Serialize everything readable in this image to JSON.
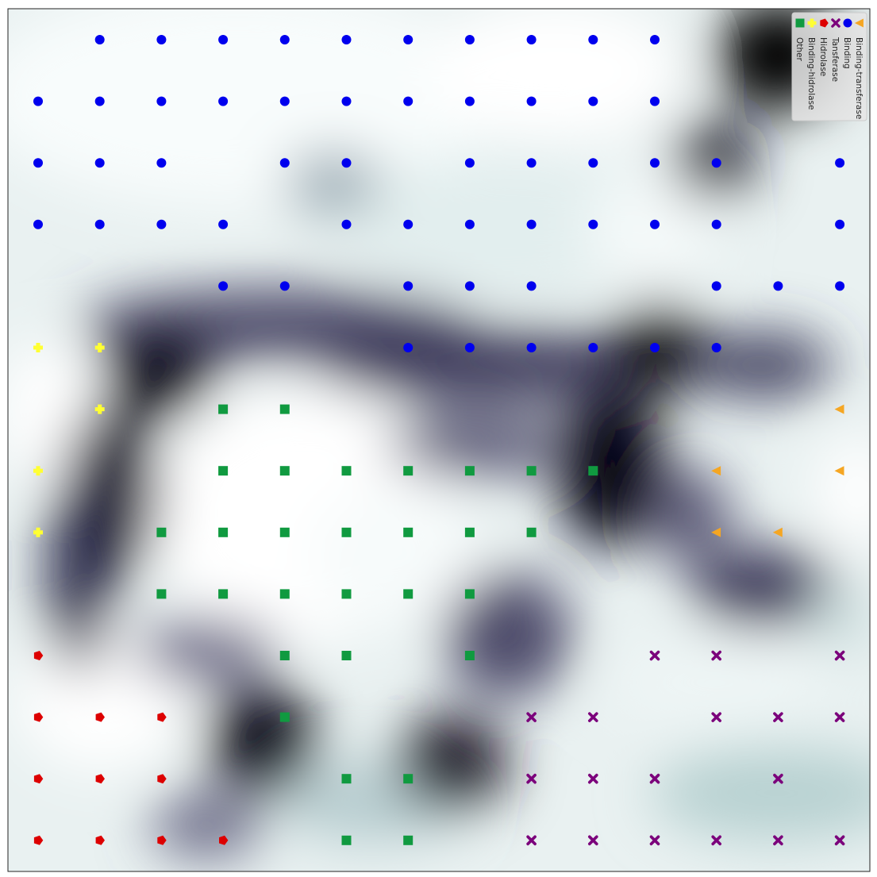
{
  "chart_data": {
    "type": "scatter",
    "title": "",
    "xlabel": "",
    "ylabel": "",
    "grid": false,
    "xlim": [
      0,
      14
    ],
    "ylim": [
      0,
      14
    ],
    "grid_size": [
      14,
      14
    ],
    "background": "heatmap (U-matrix style, dark = high distance, light = low distance)",
    "legend": {
      "placement": "top-right",
      "orientation": "rotated 90 degrees"
    },
    "series": [
      {
        "name": "Binding-transferase",
        "color": "#f5a623",
        "marker": "triangle-left",
        "points": [
          [
            13,
            6
          ],
          [
            11,
            7
          ],
          [
            13,
            7
          ],
          [
            11,
            8
          ],
          [
            12,
            8
          ]
        ]
      },
      {
        "name": "Binding",
        "color": "#0000ee",
        "marker": "circle",
        "points": [
          [
            1,
            0
          ],
          [
            2,
            0
          ],
          [
            3,
            0
          ],
          [
            4,
            0
          ],
          [
            5,
            0
          ],
          [
            6,
            0
          ],
          [
            7,
            0
          ],
          [
            8,
            0
          ],
          [
            9,
            0
          ],
          [
            10,
            0
          ],
          [
            0,
            1
          ],
          [
            1,
            1
          ],
          [
            2,
            1
          ],
          [
            3,
            1
          ],
          [
            4,
            1
          ],
          [
            5,
            1
          ],
          [
            6,
            1
          ],
          [
            7,
            1
          ],
          [
            8,
            1
          ],
          [
            9,
            1
          ],
          [
            10,
            1
          ],
          [
            0,
            2
          ],
          [
            1,
            2
          ],
          [
            2,
            2
          ],
          [
            4,
            2
          ],
          [
            5,
            2
          ],
          [
            7,
            2
          ],
          [
            8,
            2
          ],
          [
            9,
            2
          ],
          [
            10,
            2
          ],
          [
            11,
            2
          ],
          [
            13,
            2
          ],
          [
            0,
            3
          ],
          [
            1,
            3
          ],
          [
            2,
            3
          ],
          [
            3,
            3
          ],
          [
            5,
            3
          ],
          [
            6,
            3
          ],
          [
            7,
            3
          ],
          [
            8,
            3
          ],
          [
            9,
            3
          ],
          [
            10,
            3
          ],
          [
            11,
            3
          ],
          [
            13,
            3
          ],
          [
            3,
            4
          ],
          [
            4,
            4
          ],
          [
            6,
            4
          ],
          [
            7,
            4
          ],
          [
            8,
            4
          ],
          [
            11,
            4
          ],
          [
            12,
            4
          ],
          [
            13,
            4
          ],
          [
            6,
            5
          ],
          [
            7,
            5
          ],
          [
            8,
            5
          ],
          [
            9,
            5
          ],
          [
            10,
            5
          ],
          [
            11,
            5
          ]
        ]
      },
      {
        "name": "Tansferase",
        "color": "#7b007b",
        "marker": "x",
        "points": [
          [
            10,
            10
          ],
          [
            11,
            10
          ],
          [
            13,
            10
          ],
          [
            8,
            11
          ],
          [
            9,
            11
          ],
          [
            11,
            11
          ],
          [
            12,
            11
          ],
          [
            13,
            11
          ],
          [
            8,
            12
          ],
          [
            9,
            12
          ],
          [
            10,
            12
          ],
          [
            12,
            12
          ],
          [
            8,
            13
          ],
          [
            9,
            13
          ],
          [
            10,
            13
          ],
          [
            11,
            13
          ],
          [
            12,
            13
          ],
          [
            13,
            13
          ]
        ]
      },
      {
        "name": "Hidrolase",
        "color": "#dd0000",
        "marker": "pentagon",
        "points": [
          [
            0,
            10
          ],
          [
            0,
            11
          ],
          [
            1,
            11
          ],
          [
            2,
            11
          ],
          [
            0,
            12
          ],
          [
            1,
            12
          ],
          [
            2,
            12
          ],
          [
            0,
            13
          ],
          [
            1,
            13
          ],
          [
            2,
            13
          ],
          [
            3,
            13
          ]
        ]
      },
      {
        "name": "Binding-hidrolase",
        "color": "#ffff33",
        "marker": "plus",
        "points": [
          [
            0,
            5
          ],
          [
            1,
            5
          ],
          [
            1,
            6
          ],
          [
            0,
            7
          ],
          [
            0,
            8
          ]
        ]
      },
      {
        "name": "Other",
        "color": "#109a40",
        "marker": "square",
        "points": [
          [
            3,
            6
          ],
          [
            4,
            6
          ],
          [
            3,
            7
          ],
          [
            4,
            7
          ],
          [
            5,
            7
          ],
          [
            6,
            7
          ],
          [
            7,
            7
          ],
          [
            8,
            7
          ],
          [
            9,
            7
          ],
          [
            2,
            8
          ],
          [
            3,
            8
          ],
          [
            4,
            8
          ],
          [
            5,
            8
          ],
          [
            6,
            8
          ],
          [
            7,
            8
          ],
          [
            8,
            8
          ],
          [
            2,
            9
          ],
          [
            3,
            9
          ],
          [
            4,
            9
          ],
          [
            5,
            9
          ],
          [
            6,
            9
          ],
          [
            7,
            9
          ],
          [
            4,
            10
          ],
          [
            5,
            10
          ],
          [
            7,
            10
          ],
          [
            4,
            11
          ],
          [
            5,
            12
          ],
          [
            6,
            12
          ],
          [
            5,
            13
          ],
          [
            6,
            13
          ]
        ]
      }
    ]
  }
}
